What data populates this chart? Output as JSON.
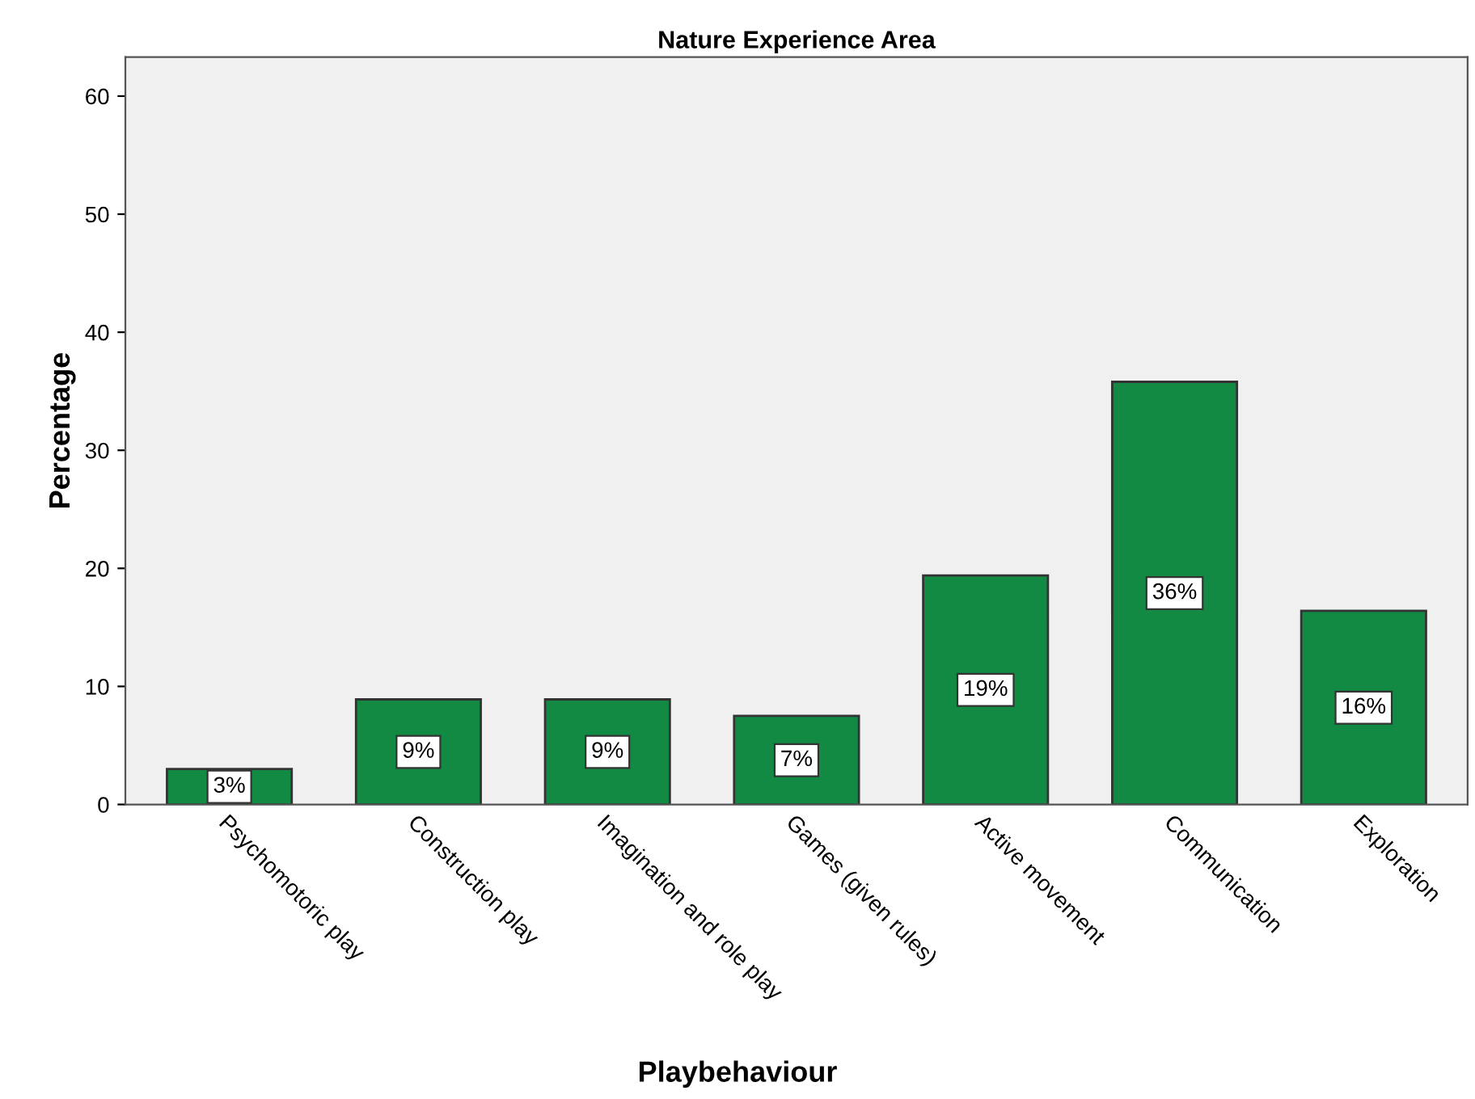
{
  "chart_data": {
    "type": "bar",
    "title": "Nature Experience Area",
    "xlabel": "Playbehaviour",
    "ylabel": "Percentage",
    "categories": [
      "Psychomotoric play",
      "Construction play",
      "Imagination and role play",
      "Games (given rules)",
      "Active movement",
      "Communication",
      "Exploration"
    ],
    "values": [
      3.0,
      8.9,
      8.9,
      7.5,
      19.4,
      35.8,
      16.4
    ],
    "value_labels": [
      "3%",
      "9%",
      "9%",
      "7%",
      "19%",
      "36%",
      "16%"
    ],
    "color": "#138a43",
    "ylim": [
      0,
      63.3
    ],
    "yticks": [
      0,
      10,
      20,
      30,
      40,
      50,
      60
    ],
    "grid": false,
    "legend": false
  }
}
